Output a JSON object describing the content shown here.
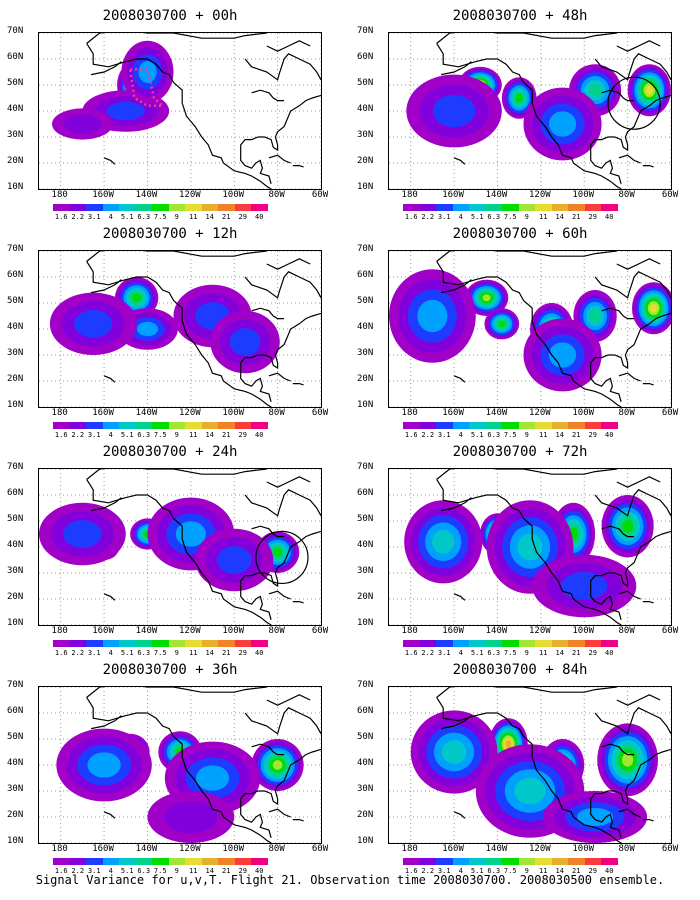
{
  "panels": [
    {
      "title": "2008030700 + 00h",
      "blobs": [
        [
          -146,
          50,
          8,
          9,
          7
        ],
        [
          -150,
          40,
          20,
          8,
          2
        ],
        [
          -170,
          35,
          14,
          6,
          1
        ],
        [
          -140,
          55,
          12,
          12,
          3
        ]
      ],
      "box": true,
      "circle": null
    },
    {
      "title": "2008030700 + 48h",
      "blobs": [
        [
          -148,
          50,
          10,
          7,
          8
        ],
        [
          -130,
          45,
          8,
          8,
          6
        ],
        [
          -95,
          48,
          12,
          10,
          5
        ],
        [
          -70,
          48,
          10,
          10,
          8
        ],
        [
          -160,
          40,
          22,
          14,
          2
        ],
        [
          -110,
          35,
          18,
          14,
          3
        ]
      ],
      "box": false,
      "circle": [
        -77,
        43,
        12
      ]
    },
    {
      "title": "2008030700 + 12h",
      "blobs": [
        [
          -145,
          52,
          10,
          8,
          6
        ],
        [
          -140,
          40,
          14,
          8,
          3
        ],
        [
          -165,
          42,
          20,
          12,
          2
        ],
        [
          -110,
          45,
          18,
          12,
          2
        ],
        [
          -95,
          35,
          16,
          12,
          2
        ]
      ],
      "box": false,
      "circle": null
    },
    {
      "title": "2008030700 + 60h",
      "blobs": [
        [
          -145,
          52,
          10,
          7,
          7
        ],
        [
          -138,
          42,
          8,
          6,
          6
        ],
        [
          -115,
          40,
          10,
          10,
          6
        ],
        [
          -95,
          45,
          10,
          10,
          5
        ],
        [
          -68,
          48,
          10,
          10,
          8
        ],
        [
          -170,
          45,
          20,
          18,
          3
        ],
        [
          -110,
          30,
          18,
          14,
          3
        ]
      ],
      "box": false,
      "circle": null
    },
    {
      "title": "2008030700 + 24h",
      "blobs": [
        [
          -160,
          40,
          7,
          5,
          7
        ],
        [
          -140,
          45,
          8,
          6,
          6
        ],
        [
          -80,
          38,
          10,
          8,
          6
        ],
        [
          -170,
          45,
          20,
          12,
          2
        ],
        [
          -120,
          45,
          20,
          14,
          3
        ],
        [
          -100,
          35,
          18,
          12,
          2
        ]
      ],
      "box": false,
      "circle": [
        -78,
        36,
        12
      ]
    },
    {
      "title": "2008030700 + 72h",
      "blobs": [
        [
          -140,
          45,
          8,
          8,
          8
        ],
        [
          -105,
          45,
          10,
          12,
          6
        ],
        [
          -80,
          48,
          12,
          12,
          6
        ],
        [
          -165,
          42,
          18,
          16,
          4
        ],
        [
          -125,
          40,
          20,
          18,
          4
        ],
        [
          -100,
          25,
          24,
          12,
          2
        ]
      ],
      "box": false,
      "circle": null
    },
    {
      "title": "2008030700 + 36h",
      "blobs": [
        [
          -148,
          45,
          9,
          7,
          8
        ],
        [
          -125,
          45,
          10,
          8,
          6
        ],
        [
          -80,
          40,
          12,
          10,
          7
        ],
        [
          -160,
          40,
          22,
          14,
          3
        ],
        [
          -110,
          35,
          22,
          14,
          3
        ],
        [
          -120,
          20,
          20,
          10,
          1
        ]
      ],
      "box": false,
      "circle": null
    },
    {
      "title": "2008030700 + 84h",
      "blobs": [
        [
          -135,
          48,
          9,
          10,
          9
        ],
        [
          -110,
          40,
          10,
          10,
          6
        ],
        [
          -80,
          42,
          14,
          14,
          7
        ],
        [
          -160,
          45,
          20,
          16,
          4
        ],
        [
          -125,
          30,
          25,
          18,
          4
        ],
        [
          -95,
          20,
          24,
          10,
          3
        ]
      ],
      "box": false,
      "circle": null
    }
  ],
  "lat_labels": [
    "70N",
    "60N",
    "50N",
    "40N",
    "30N",
    "20N",
    "10N"
  ],
  "lon_labels": [
    "180",
    "160W",
    "140W",
    "120W",
    "100W",
    "80W",
    "60W"
  ],
  "colorbar": {
    "labels": [
      "1.6",
      "2.2",
      "3.1",
      "4",
      "5.1",
      "6.3",
      "7.5",
      "9",
      "11",
      "14",
      "21",
      "29",
      "40"
    ],
    "colors": [
      "#a000c8",
      "#8200dc",
      "#1e3cff",
      "#00a0ff",
      "#00c8c8",
      "#00d28c",
      "#00dc00",
      "#a0e632",
      "#e6dc32",
      "#e6af2d",
      "#f08228",
      "#fa3c3c",
      "#f00082"
    ]
  },
  "caption": "Signal Variance for u,v,T. Flight 21. Observation time 2008030700. 2008030500 ensemble."
}
